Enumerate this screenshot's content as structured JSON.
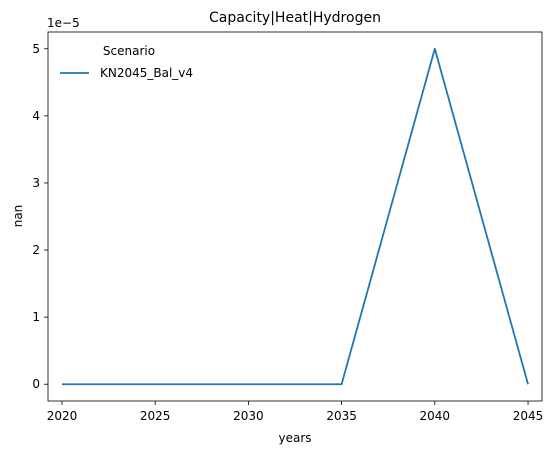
{
  "chart_data": {
    "type": "line",
    "title": "Capacity|Heat|Hydrogen",
    "xlabel": "years",
    "ylabel": "nan",
    "y_offset_label": "1e−5",
    "x": [
      2020,
      2025,
      2030,
      2035,
      2040,
      2045
    ],
    "x_ticks": [
      2020,
      2025,
      2030,
      2035,
      2040,
      2045
    ],
    "x_tick_labels": [
      "2020",
      "2025",
      "2030",
      "2035",
      "2040",
      "2045"
    ],
    "y_ticks": [
      0,
      1,
      2,
      3,
      4,
      5
    ],
    "y_tick_labels": [
      "0",
      "1",
      "2",
      "3",
      "4",
      "5"
    ],
    "xlim": [
      2019.25,
      2045.75
    ],
    "ylim": [
      -0.25,
      5.25
    ],
    "grid": false,
    "legend": {
      "title": "Scenario",
      "position": "top-left"
    },
    "series": [
      {
        "name": "KN2045_Bal_v4",
        "color": "#1f77b4",
        "values": [
          0,
          0,
          0,
          0,
          5,
          0
        ]
      }
    ]
  }
}
